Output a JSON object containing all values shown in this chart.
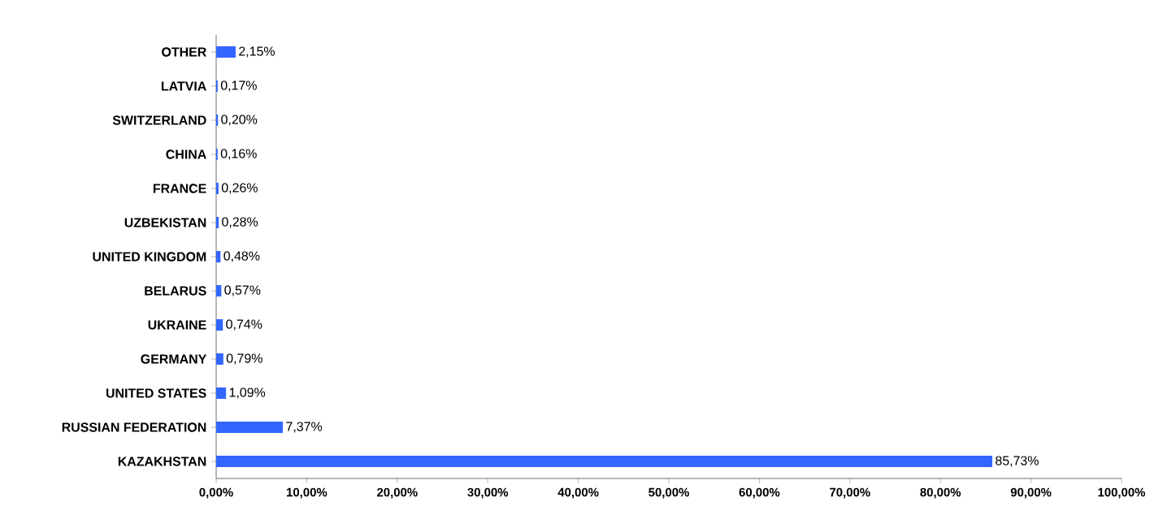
{
  "chart_data": {
    "type": "bar",
    "orientation": "horizontal",
    "categories": [
      "OTHER",
      "LATVIA",
      "SWITZERLAND",
      "CHINA",
      "FRANCE",
      "UZBEKISTAN",
      "UNITED KINGDOM",
      "BELARUS",
      "UKRAINE",
      "GERMANY",
      "UNITED STATES",
      "RUSSIAN FEDERATION",
      "KAZAKHSTAN"
    ],
    "values": [
      2.15,
      0.17,
      0.2,
      0.16,
      0.26,
      0.28,
      0.48,
      0.57,
      0.74,
      0.79,
      1.09,
      7.37,
      85.73
    ],
    "value_labels": [
      "2,15%",
      "0,17%",
      "0,20%",
      "0,16%",
      "0,26%",
      "0,28%",
      "0,48%",
      "0,57%",
      "0,74%",
      "0,79%",
      "1,09%",
      "7,37%",
      "85,73%"
    ],
    "color": "#3366ff",
    "xlim": [
      0,
      100
    ],
    "xticks": [
      {
        "value": 0,
        "label": "0,00%"
      },
      {
        "value": 10,
        "label": "10,00%"
      },
      {
        "value": 20,
        "label": "20,00%"
      },
      {
        "value": 30,
        "label": "30,00%"
      },
      {
        "value": 40,
        "label": "40,00%"
      },
      {
        "value": 50,
        "label": "50,00%"
      },
      {
        "value": 60,
        "label": "60,00%"
      },
      {
        "value": 70,
        "label": "70,00%"
      },
      {
        "value": 80,
        "label": "80,00%"
      },
      {
        "value": 90,
        "label": "90,00%"
      },
      {
        "value": 100,
        "label": "100,00%"
      }
    ],
    "grid": false
  }
}
